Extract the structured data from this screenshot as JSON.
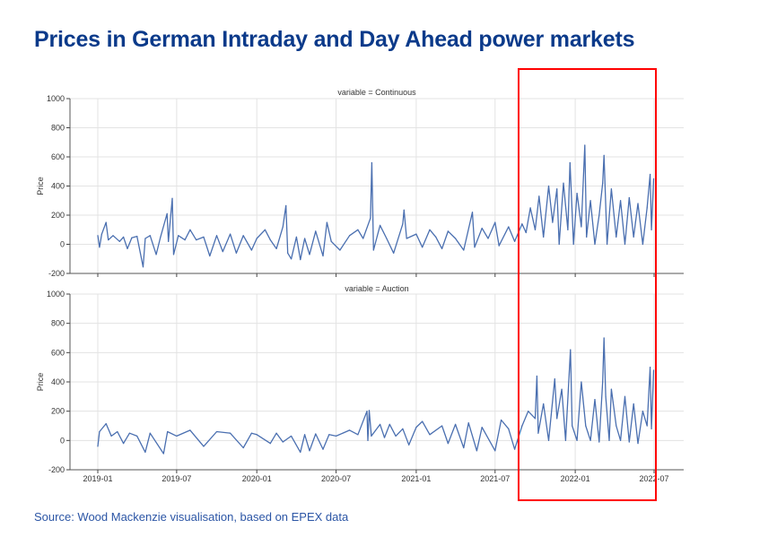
{
  "title": "Prices in German Intraday and Day Ahead power markets",
  "source": "Source: Wood Mackenzie visualisation, based on EPEX data",
  "highlight": {
    "color": "#ff0000",
    "from": "2021-09-01",
    "to": "2022-07-01"
  },
  "chart_data": [
    {
      "type": "line",
      "title": "variable = Continuous",
      "ylabel": "Price",
      "xlabel": "",
      "ylim": [
        -200,
        1000
      ],
      "yticks": [
        -200,
        0,
        200,
        400,
        600,
        800,
        1000
      ],
      "xticks": [
        "2019-01",
        "2019-07",
        "2020-01",
        "2020-07",
        "2021-01",
        "2021-07",
        "2022-01",
        "2022-07"
      ],
      "grid": true,
      "color": "#4a6fb0",
      "points": [
        [
          "2019-01-01",
          60
        ],
        [
          "2019-01-05",
          -20
        ],
        [
          "2019-01-10",
          70
        ],
        [
          "2019-01-20",
          150
        ],
        [
          "2019-01-25",
          30
        ],
        [
          "2019-02-05",
          60
        ],
        [
          "2019-02-20",
          20
        ],
        [
          "2019-03-01",
          50
        ],
        [
          "2019-03-10",
          -30
        ],
        [
          "2019-03-20",
          45
        ],
        [
          "2019-04-01",
          55
        ],
        [
          "2019-04-15",
          -155
        ],
        [
          "2019-04-20",
          40
        ],
        [
          "2019-05-01",
          60
        ],
        [
          "2019-05-15",
          -70
        ],
        [
          "2019-05-25",
          50
        ],
        [
          "2019-06-09",
          210
        ],
        [
          "2019-06-12",
          20
        ],
        [
          "2019-06-21",
          315
        ],
        [
          "2019-06-24",
          -70
        ],
        [
          "2019-07-05",
          60
        ],
        [
          "2019-07-20",
          30
        ],
        [
          "2019-08-01",
          100
        ],
        [
          "2019-08-15",
          30
        ],
        [
          "2019-09-01",
          50
        ],
        [
          "2019-09-15",
          -80
        ],
        [
          "2019-10-01",
          60
        ],
        [
          "2019-10-15",
          -50
        ],
        [
          "2019-11-01",
          70
        ],
        [
          "2019-11-15",
          -60
        ],
        [
          "2019-12-01",
          60
        ],
        [
          "2019-12-20",
          -40
        ],
        [
          "2020-01-01",
          40
        ],
        [
          "2020-01-20",
          100
        ],
        [
          "2020-02-01",
          30
        ],
        [
          "2020-02-15",
          -30
        ],
        [
          "2020-03-01",
          120
        ],
        [
          "2020-03-08",
          265
        ],
        [
          "2020-03-12",
          -60
        ],
        [
          "2020-03-20",
          -100
        ],
        [
          "2020-04-01",
          50
        ],
        [
          "2020-04-10",
          -105
        ],
        [
          "2020-04-20",
          40
        ],
        [
          "2020-05-01",
          -70
        ],
        [
          "2020-05-15",
          90
        ],
        [
          "2020-06-01",
          -80
        ],
        [
          "2020-06-10",
          150
        ],
        [
          "2020-06-20",
          20
        ],
        [
          "2020-07-10",
          -40
        ],
        [
          "2020-08-01",
          60
        ],
        [
          "2020-08-20",
          100
        ],
        [
          "2020-09-01",
          40
        ],
        [
          "2020-09-18",
          180
        ],
        [
          "2020-09-21",
          560
        ],
        [
          "2020-09-25",
          -40
        ],
        [
          "2020-10-10",
          130
        ],
        [
          "2020-10-25",
          40
        ],
        [
          "2020-11-10",
          -60
        ],
        [
          "2020-12-01",
          140
        ],
        [
          "2020-12-04",
          235
        ],
        [
          "2020-12-10",
          40
        ],
        [
          "2021-01-01",
          70
        ],
        [
          "2021-01-15",
          -20
        ],
        [
          "2021-02-01",
          100
        ],
        [
          "2021-02-15",
          50
        ],
        [
          "2021-03-01",
          -30
        ],
        [
          "2021-03-15",
          90
        ],
        [
          "2021-04-01",
          40
        ],
        [
          "2021-04-20",
          -40
        ],
        [
          "2021-05-10",
          220
        ],
        [
          "2021-05-15",
          -20
        ],
        [
          "2021-06-01",
          110
        ],
        [
          "2021-06-15",
          40
        ],
        [
          "2021-07-01",
          150
        ],
        [
          "2021-07-10",
          -10
        ],
        [
          "2021-08-01",
          120
        ],
        [
          "2021-08-15",
          20
        ],
        [
          "2021-09-01",
          140
        ],
        [
          "2021-09-10",
          80
        ],
        [
          "2021-09-20",
          250
        ],
        [
          "2021-10-01",
          100
        ],
        [
          "2021-10-10",
          330
        ],
        [
          "2021-10-20",
          50
        ],
        [
          "2021-11-01",
          400
        ],
        [
          "2021-11-10",
          150
        ],
        [
          "2021-11-20",
          380
        ],
        [
          "2021-11-25",
          0
        ],
        [
          "2021-12-05",
          420
        ],
        [
          "2021-12-15",
          100
        ],
        [
          "2021-12-20",
          560
        ],
        [
          "2021-12-28",
          0
        ],
        [
          "2022-01-05",
          350
        ],
        [
          "2022-01-15",
          120
        ],
        [
          "2022-01-23",
          680
        ],
        [
          "2022-01-27",
          50
        ],
        [
          "2022-02-05",
          300
        ],
        [
          "2022-02-15",
          0
        ],
        [
          "2022-02-25",
          200
        ],
        [
          "2022-03-05",
          420
        ],
        [
          "2022-03-08",
          610
        ],
        [
          "2022-03-15",
          0
        ],
        [
          "2022-03-25",
          380
        ],
        [
          "2022-04-05",
          50
        ],
        [
          "2022-04-15",
          300
        ],
        [
          "2022-04-25",
          0
        ],
        [
          "2022-05-05",
          320
        ],
        [
          "2022-05-15",
          50
        ],
        [
          "2022-05-25",
          280
        ],
        [
          "2022-06-05",
          0
        ],
        [
          "2022-06-15",
          250
        ],
        [
          "2022-06-22",
          480
        ],
        [
          "2022-06-25",
          100
        ],
        [
          "2022-06-30",
          450
        ]
      ]
    },
    {
      "type": "line",
      "title": "variable = Auction",
      "ylabel": "Price",
      "xlabel": "",
      "ylim": [
        -200,
        1000
      ],
      "yticks": [
        -200,
        0,
        200,
        400,
        600,
        800,
        1000
      ],
      "xticks": [
        "2019-01",
        "2019-07",
        "2020-01",
        "2020-07",
        "2021-01",
        "2021-07",
        "2022-01",
        "2022-07"
      ],
      "grid": true,
      "color": "#4a6fb0",
      "points": [
        [
          "2019-01-01",
          -40
        ],
        [
          "2019-01-05",
          60
        ],
        [
          "2019-01-20",
          115
        ],
        [
          "2019-02-01",
          30
        ],
        [
          "2019-02-15",
          60
        ],
        [
          "2019-03-01",
          -20
        ],
        [
          "2019-03-15",
          50
        ],
        [
          "2019-04-01",
          30
        ],
        [
          "2019-04-20",
          -80
        ],
        [
          "2019-05-01",
          50
        ],
        [
          "2019-06-01",
          -90
        ],
        [
          "2019-06-10",
          60
        ],
        [
          "2019-07-01",
          30
        ],
        [
          "2019-08-01",
          70
        ],
        [
          "2019-09-01",
          -40
        ],
        [
          "2019-10-01",
          60
        ],
        [
          "2019-11-01",
          50
        ],
        [
          "2019-12-01",
          -50
        ],
        [
          "2019-12-20",
          50
        ],
        [
          "2020-01-01",
          40
        ],
        [
          "2020-02-01",
          -20
        ],
        [
          "2020-02-15",
          50
        ],
        [
          "2020-03-01",
          -10
        ],
        [
          "2020-03-20",
          30
        ],
        [
          "2020-04-10",
          -80
        ],
        [
          "2020-04-20",
          40
        ],
        [
          "2020-05-01",
          -70
        ],
        [
          "2020-05-15",
          45
        ],
        [
          "2020-06-01",
          -60
        ],
        [
          "2020-06-15",
          40
        ],
        [
          "2020-07-01",
          30
        ],
        [
          "2020-08-01",
          70
        ],
        [
          "2020-08-20",
          40
        ],
        [
          "2020-09-10",
          200
        ],
        [
          "2020-09-12",
          0
        ],
        [
          "2020-09-15",
          205
        ],
        [
          "2020-09-20",
          30
        ],
        [
          "2020-10-10",
          110
        ],
        [
          "2020-10-20",
          20
        ],
        [
          "2020-11-01",
          110
        ],
        [
          "2020-11-15",
          30
        ],
        [
          "2020-12-01",
          80
        ],
        [
          "2020-12-15",
          -30
        ],
        [
          "2021-01-01",
          90
        ],
        [
          "2021-01-15",
          130
        ],
        [
          "2021-02-01",
          40
        ],
        [
          "2021-03-01",
          100
        ],
        [
          "2021-03-15",
          -20
        ],
        [
          "2021-04-01",
          110
        ],
        [
          "2021-04-20",
          -50
        ],
        [
          "2021-05-01",
          120
        ],
        [
          "2021-05-20",
          -70
        ],
        [
          "2021-06-01",
          90
        ],
        [
          "2021-07-01",
          -70
        ],
        [
          "2021-07-15",
          140
        ],
        [
          "2021-08-01",
          80
        ],
        [
          "2021-08-15",
          -60
        ],
        [
          "2021-09-01",
          100
        ],
        [
          "2021-09-15",
          200
        ],
        [
          "2021-10-01",
          150
        ],
        [
          "2021-10-05",
          440
        ],
        [
          "2021-10-08",
          50
        ],
        [
          "2021-10-20",
          250
        ],
        [
          "2021-11-01",
          0
        ],
        [
          "2021-11-15",
          420
        ],
        [
          "2021-11-20",
          150
        ],
        [
          "2021-12-01",
          350
        ],
        [
          "2021-12-10",
          0
        ],
        [
          "2021-12-21",
          620
        ],
        [
          "2021-12-25",
          100
        ],
        [
          "2022-01-05",
          0
        ],
        [
          "2022-01-15",
          400
        ],
        [
          "2022-01-25",
          100
        ],
        [
          "2022-02-05",
          0
        ],
        [
          "2022-02-15",
          280
        ],
        [
          "2022-02-25",
          -10
        ],
        [
          "2022-03-05",
          400
        ],
        [
          "2022-03-08",
          700
        ],
        [
          "2022-03-12",
          300
        ],
        [
          "2022-03-20",
          0
        ],
        [
          "2022-03-25",
          350
        ],
        [
          "2022-04-05",
          100
        ],
        [
          "2022-04-15",
          0
        ],
        [
          "2022-04-25",
          300
        ],
        [
          "2022-05-05",
          -10
        ],
        [
          "2022-05-15",
          250
        ],
        [
          "2022-05-25",
          -20
        ],
        [
          "2022-06-05",
          200
        ],
        [
          "2022-06-15",
          100
        ],
        [
          "2022-06-22",
          500
        ],
        [
          "2022-06-25",
          80
        ],
        [
          "2022-06-30",
          480
        ]
      ]
    }
  ]
}
